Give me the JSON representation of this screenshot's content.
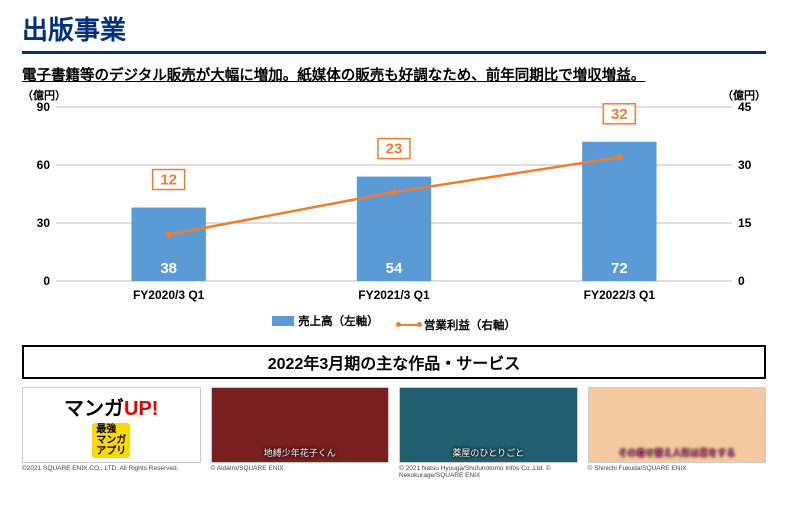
{
  "title": "出版事業",
  "subtitle": "電子書籍等のデジタル販売が大幅に増加。紙媒体の販売も好調なため、前年同期比で増収増益。",
  "chart": {
    "left_axis_label": "（億円）",
    "right_axis_label": "（億円）",
    "left_axis": {
      "min": 0,
      "max": 90,
      "step": 30
    },
    "right_axis": {
      "min": 0,
      "max": 45,
      "step": 15
    },
    "categories": [
      "FY2020/3 Q1",
      "FY2021/3 Q1",
      "FY2022/3 Q1"
    ],
    "bars": {
      "name": "売上高（左軸）",
      "values": [
        38,
        54,
        72
      ],
      "labels": [
        "38",
        "54",
        "72"
      ],
      "color": "#5b9bd5",
      "label_color": "#ffffff",
      "label_fontsize": 15,
      "bar_width_frac": 0.33
    },
    "line": {
      "name": "営業利益（右軸）",
      "values": [
        12,
        23,
        32
      ],
      "labels": [
        "12",
        "23",
        "32"
      ],
      "color": "#ed7d31",
      "label_color": "#ed7d31",
      "label_border": "#ed7d31",
      "label_bg": "#ffffff",
      "label_fontsize": 15,
      "marker": "diamond",
      "marker_size": 8,
      "line_width": 2.5
    },
    "grid_color": "#bfbfbf",
    "axis_font_color": "#000000",
    "axis_fontsize": 12,
    "category_fontsize": 12,
    "plot_bg": "#ffffff"
  },
  "legend": {
    "bar_label": "売上高（左軸）",
    "line_label": "営業利益（右軸）"
  },
  "section_header": "2022年3月期の主な作品・サービス",
  "products": [
    {
      "kind": "logo",
      "logo_main": "マンガ",
      "logo_accent": "UP!",
      "badge_line1": "最強",
      "badge_line2": "マンガ",
      "badge_line3": "アプリ",
      "bg": "#ffffff",
      "copyright": "©2021 SQUARE ENIX CO., LTD. All Rights Reserved."
    },
    {
      "kind": "art",
      "caption": "地縛少年花子くん",
      "bg": "#7a1f1f",
      "copyright": "© AidaIro/SQUARE ENIX"
    },
    {
      "kind": "art",
      "caption": "薬屋のひとりごと",
      "bg": "#1f5f6f",
      "copyright": "© 2021 Natsu Hyuuga/Shufunotomo Infos Co.,Ltd. © Nekokurage/SQUARE ENIX"
    },
    {
      "kind": "art",
      "caption": "その着せ替え人形は恋をする",
      "bg": "#f5c9a0",
      "caption_color": "#e63aa0",
      "copyright": "© Shinichi Fukuda/SQUARE ENIX"
    }
  ]
}
